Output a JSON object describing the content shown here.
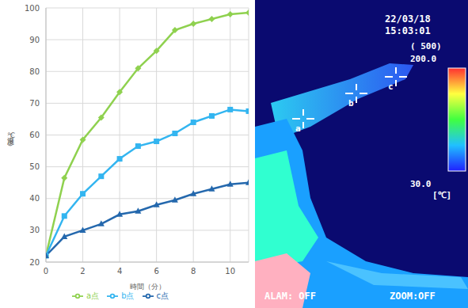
{
  "chart_data": {
    "type": "line",
    "x_label": "時間（分）",
    "y_label": "温度（℃）",
    "x": [
      0,
      1,
      2,
      3,
      4,
      5,
      6,
      7,
      8,
      9,
      10,
      11
    ],
    "series": [
      {
        "name": "a点",
        "color": "#8fd14f",
        "marker": "diamond",
        "values": [
          22,
          46.5,
          58.5,
          65.5,
          73.5,
          81,
          86.5,
          93,
          95,
          96.5,
          98,
          98.5
        ]
      },
      {
        "name": "b点",
        "color": "#33b5f0",
        "marker": "square",
        "values": [
          22,
          34.5,
          41.5,
          47,
          52.5,
          56.5,
          58,
          60.5,
          64,
          66,
          68,
          67.5
        ]
      },
      {
        "name": "c点",
        "color": "#2468ad",
        "marker": "triangle",
        "values": [
          22,
          28,
          30,
          32,
          35,
          36,
          38,
          39.5,
          41.5,
          43,
          44.5,
          45
        ]
      }
    ],
    "xlim": [
      0,
      11
    ],
    "xticks": [
      0,
      2,
      4,
      6,
      8,
      10
    ],
    "ylim": [
      20,
      100
    ],
    "yticks": [
      20,
      30,
      40,
      50,
      60,
      70,
      80,
      90,
      100
    ],
    "grid": true,
    "legend": "bottom"
  },
  "thermal_image": {
    "date": "22/03/18",
    "time": "15:03:01",
    "emissivity": "( 500)",
    "scale_max": "200.0",
    "scale_min": "30.0",
    "unit": "[℃]",
    "status_left": "ALAM: OFF",
    "status_right": "ZOOM:OFF",
    "points": [
      "a",
      "b",
      "c"
    ]
  }
}
